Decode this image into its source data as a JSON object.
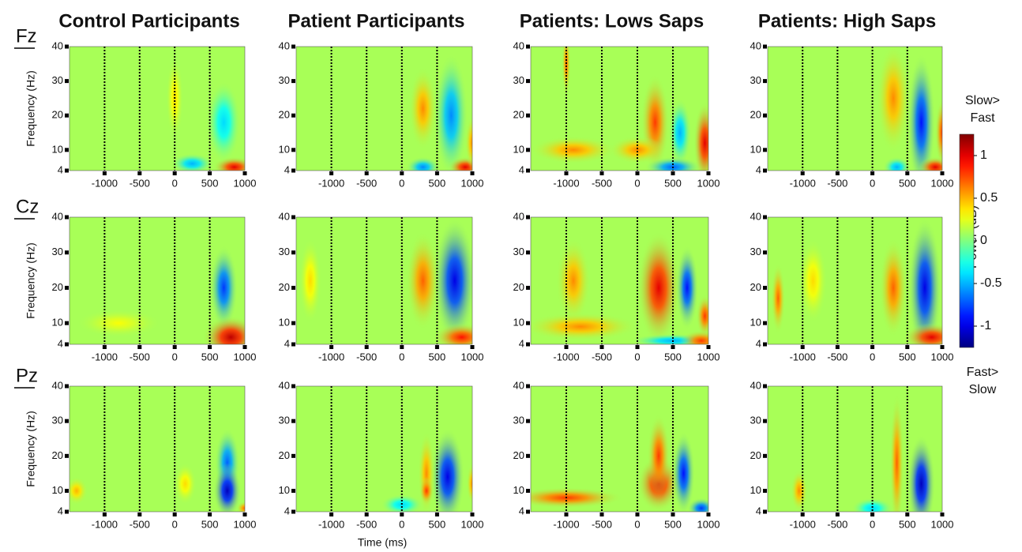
{
  "column_titles": [
    "Control Participants",
    "Patient Participants",
    "Patients: Lows Saps",
    "Patients: High Saps"
  ],
  "row_labels": [
    "Fz",
    "Cz",
    "Pz"
  ],
  "xlabel": "Time (ms)",
  "colorbar": {
    "label": "Power (dB)",
    "top_label": [
      "Slow>",
      "Fast"
    ],
    "bottom_label": [
      "Fast>",
      "Slow"
    ],
    "clim": [
      -1.25,
      1.25
    ],
    "ticks": [
      1,
      0.5,
      0,
      -0.5,
      -1
    ]
  },
  "chart_data": [
    {
      "type": "heatmap",
      "ylabel": "Frequency (Hz)",
      "xlim": [
        -1500,
        1000
      ],
      "ylim": [
        4,
        40
      ],
      "xticks": [
        -1000,
        -500,
        0,
        500,
        1000
      ],
      "yticks": [
        4,
        10,
        20,
        30,
        40
      ],
      "baseline": 0.1,
      "blobs": [
        {
          "t": 700,
          "f": 18,
          "v": -0.4,
          "dt": 120,
          "df": 6
        },
        {
          "t": 850,
          "f": 5,
          "v": 1.0,
          "dt": 150,
          "df": 1.5
        },
        {
          "t": 250,
          "f": 6,
          "v": -0.5,
          "dt": 150,
          "df": 1.5
        },
        {
          "t": 0,
          "f": 25,
          "v": 0.4,
          "dt": 60,
          "df": 6
        }
      ]
    },
    {
      "type": "heatmap",
      "xlim": [
        -1500,
        1000
      ],
      "ylim": [
        4,
        40
      ],
      "xticks": [
        -1000,
        -500,
        0,
        500,
        1000
      ],
      "yticks": [
        4,
        10,
        20,
        30,
        40
      ],
      "baseline": 0.1,
      "blobs": [
        {
          "t": 300,
          "f": 22,
          "v": 0.6,
          "dt": 100,
          "df": 6
        },
        {
          "t": 700,
          "f": 20,
          "v": -0.6,
          "dt": 120,
          "df": 9
        },
        {
          "t": 300,
          "f": 5,
          "v": -0.6,
          "dt": 120,
          "df": 1.5
        },
        {
          "t": 900,
          "f": 5,
          "v": 1.0,
          "dt": 120,
          "df": 1.5
        },
        {
          "t": 1000,
          "f": 12,
          "v": 0.6,
          "dt": 50,
          "df": 4
        }
      ]
    },
    {
      "type": "heatmap",
      "xlim": [
        -1500,
        1000
      ],
      "ylim": [
        4,
        40
      ],
      "xticks": [
        -1000,
        -500,
        0,
        500,
        1000
      ],
      "yticks": [
        4,
        10,
        20,
        30,
        40
      ],
      "baseline": 0.1,
      "blobs": [
        {
          "t": 250,
          "f": 18,
          "v": 0.8,
          "dt": 100,
          "df": 7
        },
        {
          "t": 600,
          "f": 15,
          "v": -0.5,
          "dt": 80,
          "df": 5
        },
        {
          "t": 950,
          "f": 12,
          "v": 1.0,
          "dt": 80,
          "df": 6
        },
        {
          "t": -900,
          "f": 10,
          "v": 0.6,
          "dt": 300,
          "df": 2
        },
        {
          "t": 0,
          "f": 10,
          "v": 0.6,
          "dt": 200,
          "df": 2
        },
        {
          "t": 500,
          "f": 5,
          "v": -0.7,
          "dt": 200,
          "df": 1.5
        },
        {
          "t": -1000,
          "f": 35,
          "v": 0.7,
          "dt": 30,
          "df": 5
        }
      ]
    },
    {
      "type": "heatmap",
      "xlim": [
        -1500,
        1000
      ],
      "ylim": [
        4,
        40
      ],
      "xticks": [
        -1000,
        -500,
        0,
        500,
        1000
      ],
      "yticks": [
        4,
        10,
        20,
        30,
        40
      ],
      "baseline": 0.1,
      "blobs": [
        {
          "t": 300,
          "f": 25,
          "v": 0.6,
          "dt": 120,
          "df": 8
        },
        {
          "t": 700,
          "f": 18,
          "v": -0.9,
          "dt": 100,
          "df": 10
        },
        {
          "t": 900,
          "f": 5,
          "v": 1.0,
          "dt": 120,
          "df": 1.5
        },
        {
          "t": 350,
          "f": 5,
          "v": -0.5,
          "dt": 100,
          "df": 1.5
        },
        {
          "t": 1000,
          "f": 15,
          "v": 0.8,
          "dt": 50,
          "df": 5
        }
      ]
    },
    {
      "type": "heatmap",
      "ylabel": "Frequency (Hz)",
      "xlim": [
        -1500,
        1000
      ],
      "ylim": [
        4,
        40
      ],
      "xticks": [
        -1000,
        -500,
        0,
        500,
        1000
      ],
      "yticks": [
        4,
        10,
        20,
        30,
        40
      ],
      "baseline": 0.1,
      "blobs": [
        {
          "t": 700,
          "f": 20,
          "v": -0.8,
          "dt": 100,
          "df": 6
        },
        {
          "t": 800,
          "f": 6,
          "v": 1.1,
          "dt": 200,
          "df": 3
        },
        {
          "t": -800,
          "f": 10,
          "v": 0.3,
          "dt": 300,
          "df": 2
        }
      ]
    },
    {
      "type": "heatmap",
      "xlim": [
        -1500,
        1000
      ],
      "ylim": [
        4,
        40
      ],
      "xticks": [
        -1000,
        -500,
        0,
        500,
        1000
      ],
      "yticks": [
        4,
        10,
        20,
        30,
        40
      ],
      "baseline": 0.1,
      "blobs": [
        {
          "t": 300,
          "f": 22,
          "v": 0.7,
          "dt": 120,
          "df": 7
        },
        {
          "t": 750,
          "f": 22,
          "v": -1.0,
          "dt": 150,
          "df": 9
        },
        {
          "t": 850,
          "f": 6,
          "v": 0.9,
          "dt": 200,
          "df": 2
        },
        {
          "t": -1300,
          "f": 22,
          "v": 0.4,
          "dt": 80,
          "df": 6
        }
      ]
    },
    {
      "type": "heatmap",
      "xlim": [
        -1500,
        1000
      ],
      "ylim": [
        4,
        40
      ],
      "xticks": [
        -1000,
        -500,
        0,
        500,
        1000
      ],
      "yticks": [
        4,
        10,
        20,
        30,
        40
      ],
      "baseline": 0.1,
      "blobs": [
        {
          "t": 300,
          "f": 20,
          "v": 1.0,
          "dt": 150,
          "df": 8
        },
        {
          "t": 700,
          "f": 20,
          "v": -0.9,
          "dt": 80,
          "df": 6
        },
        {
          "t": -900,
          "f": 22,
          "v": 0.6,
          "dt": 120,
          "df": 6
        },
        {
          "t": -800,
          "f": 9,
          "v": 0.6,
          "dt": 400,
          "df": 2
        },
        {
          "t": 500,
          "f": 5,
          "v": -0.5,
          "dt": 300,
          "df": 1
        },
        {
          "t": 950,
          "f": 12,
          "v": 0.8,
          "dt": 60,
          "df": 3
        },
        {
          "t": 900,
          "f": 5,
          "v": 0.8,
          "dt": 150,
          "df": 1.5
        }
      ]
    },
    {
      "type": "heatmap",
      "xlim": [
        -1500,
        1000
      ],
      "ylim": [
        4,
        40
      ],
      "xticks": [
        -1000,
        -500,
        0,
        500,
        1000
      ],
      "yticks": [
        4,
        10,
        20,
        30,
        40
      ],
      "baseline": 0.1,
      "blobs": [
        {
          "t": 300,
          "f": 20,
          "v": 0.7,
          "dt": 100,
          "df": 7
        },
        {
          "t": 750,
          "f": 20,
          "v": -1.0,
          "dt": 120,
          "df": 10
        },
        {
          "t": -1350,
          "f": 17,
          "v": 0.7,
          "dt": 50,
          "df": 5
        },
        {
          "t": 850,
          "f": 6,
          "v": 1.0,
          "dt": 200,
          "df": 2
        },
        {
          "t": -850,
          "f": 22,
          "v": 0.4,
          "dt": 100,
          "df": 6
        }
      ]
    },
    {
      "type": "heatmap",
      "ylabel": "Frequency (Hz)",
      "xlim": [
        -1500,
        1000
      ],
      "ylim": [
        4,
        40
      ],
      "xticks": [
        -1000,
        -500,
        0,
        500,
        1000
      ],
      "yticks": [
        4,
        10,
        20,
        30,
        40
      ],
      "baseline": 0.1,
      "blobs": [
        {
          "t": 750,
          "f": 18,
          "v": -0.7,
          "dt": 90,
          "df": 5
        },
        {
          "t": 750,
          "f": 10,
          "v": -1.1,
          "dt": 100,
          "df": 4
        },
        {
          "t": -1400,
          "f": 10,
          "v": 0.5,
          "dt": 80,
          "df": 2
        },
        {
          "t": 150,
          "f": 12,
          "v": 0.4,
          "dt": 80,
          "df": 3
        },
        {
          "t": 1000,
          "f": 5,
          "v": 0.7,
          "dt": 60,
          "df": 1
        }
      ]
    },
    {
      "type": "heatmap",
      "xlim": [
        -1500,
        1000
      ],
      "ylim": [
        4,
        40
      ],
      "xticks": [
        -1000,
        -500,
        0,
        500,
        1000
      ],
      "yticks": [
        4,
        10,
        20,
        30,
        40
      ],
      "baseline": 0.1,
      "blobs": [
        {
          "t": 650,
          "f": 14,
          "v": -1.0,
          "dt": 120,
          "df": 7
        },
        {
          "t": 350,
          "f": 15,
          "v": 0.6,
          "dt": 60,
          "df": 6
        },
        {
          "t": 350,
          "f": 10,
          "v": 0.8,
          "dt": 50,
          "df": 2
        },
        {
          "t": 0,
          "f": 6,
          "v": -0.4,
          "dt": 150,
          "df": 1.5
        },
        {
          "t": 1000,
          "f": 12,
          "v": 0.6,
          "dt": 40,
          "df": 3
        }
      ]
    },
    {
      "type": "heatmap",
      "xlim": [
        -1500,
        1000
      ],
      "ylim": [
        4,
        40
      ],
      "xticks": [
        -1000,
        -500,
        0,
        500,
        1000
      ],
      "yticks": [
        4,
        10,
        20,
        30,
        40
      ],
      "baseline": 0.1,
      "blobs": [
        {
          "t": 300,
          "f": 12,
          "v": 1.0,
          "dt": 150,
          "df": 4
        },
        {
          "t": 300,
          "f": 20,
          "v": 0.8,
          "dt": 80,
          "df": 6
        },
        {
          "t": 650,
          "f": 15,
          "v": -0.9,
          "dt": 80,
          "df": 6
        },
        {
          "t": -1000,
          "f": 8,
          "v": 0.8,
          "dt": 400,
          "df": 1.5
        },
        {
          "t": 900,
          "f": 5,
          "v": -0.8,
          "dt": 100,
          "df": 1.5
        }
      ]
    },
    {
      "type": "heatmap",
      "xlim": [
        -1500,
        1000
      ],
      "ylim": [
        4,
        40
      ],
      "xticks": [
        -1000,
        -500,
        0,
        500,
        1000
      ],
      "yticks": [
        4,
        10,
        20,
        30,
        40
      ],
      "baseline": 0.1,
      "blobs": [
        {
          "t": 700,
          "f": 12,
          "v": -1.1,
          "dt": 100,
          "df": 7
        },
        {
          "t": 350,
          "f": 18,
          "v": 0.7,
          "dt": 50,
          "df": 10
        },
        {
          "t": -1050,
          "f": 10,
          "v": 0.6,
          "dt": 60,
          "df": 3
        },
        {
          "t": 0,
          "f": 5,
          "v": -0.4,
          "dt": 150,
          "df": 1.5
        }
      ]
    }
  ]
}
